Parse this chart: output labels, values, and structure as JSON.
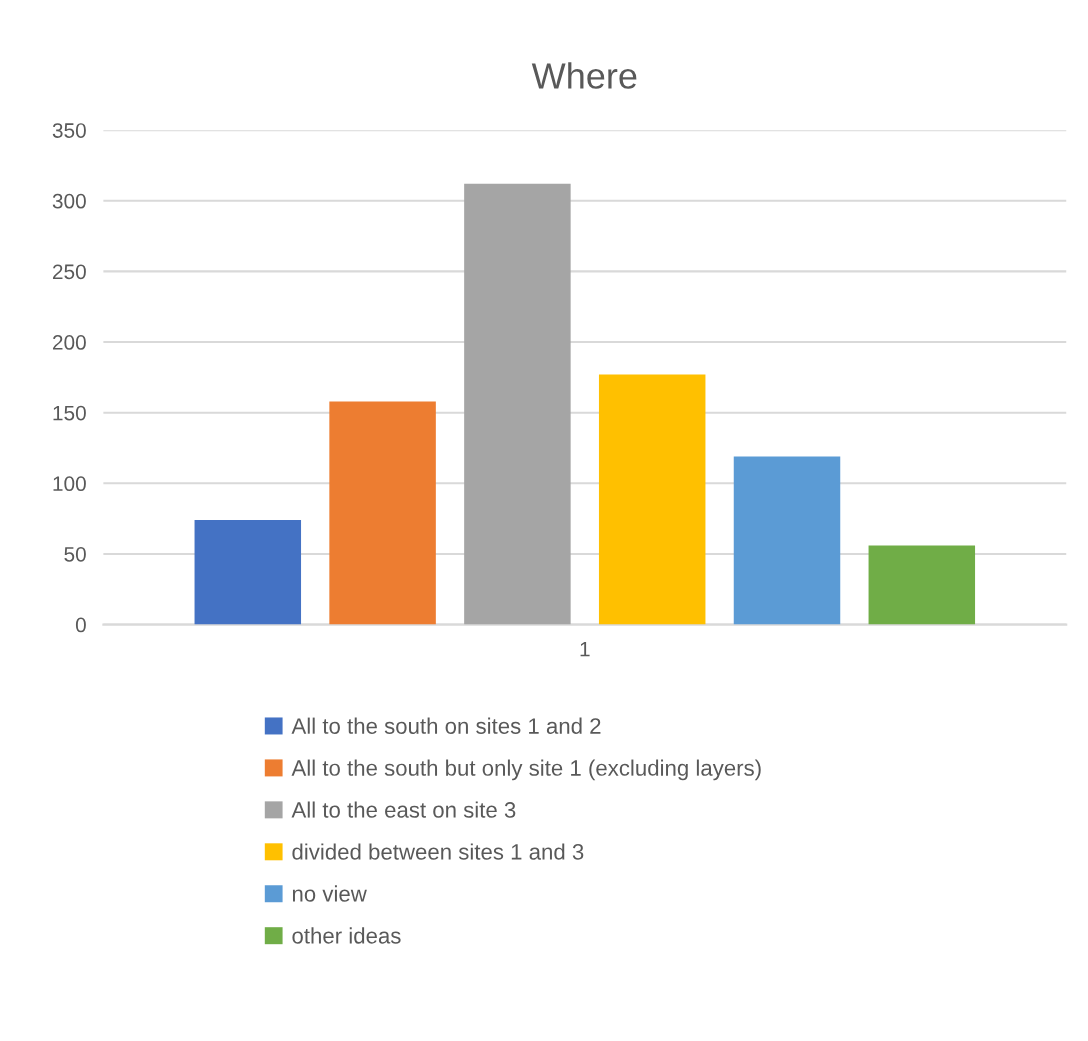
{
  "chart_data": {
    "type": "bar",
    "title": "Where",
    "categories": [
      "1"
    ],
    "series": [
      {
        "name": "All to the south on sites 1 and 2",
        "color": "#4472c4",
        "values": [
          74
        ]
      },
      {
        "name": "All to the south but only site 1 (excluding layers)",
        "color": "#ed7d31",
        "values": [
          158
        ]
      },
      {
        "name": "All to the east on site 3",
        "color": "#a5a5a5",
        "values": [
          312
        ]
      },
      {
        "name": "divided between sites 1 and 3",
        "color": "#ffc000",
        "values": [
          177
        ]
      },
      {
        "name": "no view",
        "color": "#5b9bd5",
        "values": [
          119
        ]
      },
      {
        "name": "other ideas",
        "color": "#70ad47",
        "values": [
          56
        ]
      }
    ],
    "ylim": [
      0,
      350
    ],
    "yticks": [
      0,
      50,
      100,
      150,
      200,
      250,
      300,
      350
    ],
    "grid": "y",
    "legend": "bottom"
  }
}
